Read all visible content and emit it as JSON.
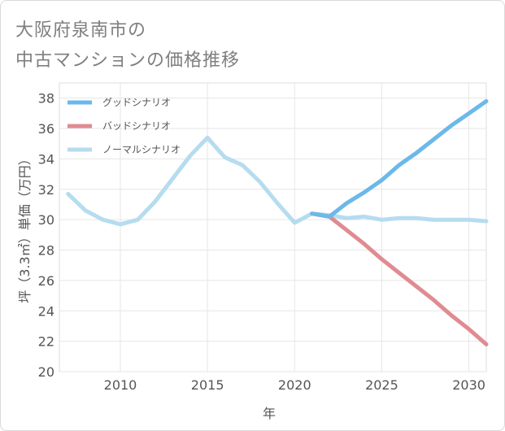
{
  "header": {
    "title_line1": "大阪府泉南市の",
    "title_line2": "中古マンションの価格推移"
  },
  "chart_data": {
    "type": "line",
    "title": "大阪府泉南市の中古マンションの価格推移",
    "xlabel": "年",
    "ylabel": "坪（3.3㎡）単価（万円）",
    "xlim": [
      2006.5,
      2031
    ],
    "ylim": [
      20,
      39
    ],
    "x_ticks": [
      2010,
      2015,
      2020,
      2025,
      2030
    ],
    "y_ticks": [
      20,
      22,
      24,
      26,
      28,
      30,
      32,
      34,
      36,
      38
    ],
    "grid": true,
    "legend_position": "top-left",
    "series": [
      {
        "name": "グッドシナリオ",
        "color": "#6cb8ea",
        "points": [
          [
            2021,
            30.4
          ],
          [
            2022,
            30.2
          ],
          [
            2023,
            31.1
          ],
          [
            2024,
            31.8
          ],
          [
            2025,
            32.6
          ],
          [
            2026,
            33.6
          ],
          [
            2027,
            34.4
          ],
          [
            2028,
            35.3
          ],
          [
            2029,
            36.2
          ],
          [
            2030,
            37.0
          ],
          [
            2031,
            37.8
          ]
        ]
      },
      {
        "name": "バッドシナリオ",
        "color": "#e08b93",
        "points": [
          [
            2021,
            30.4
          ],
          [
            2022,
            30.2
          ],
          [
            2023,
            29.3
          ],
          [
            2024,
            28.4
          ],
          [
            2025,
            27.4
          ],
          [
            2026,
            26.5
          ],
          [
            2027,
            25.6
          ],
          [
            2028,
            24.7
          ],
          [
            2029,
            23.7
          ],
          [
            2030,
            22.8
          ],
          [
            2031,
            21.8
          ]
        ]
      },
      {
        "name": "ノーマルシナリオ",
        "color": "#b5dcef",
        "points": [
          [
            2007,
            31.7
          ],
          [
            2008,
            30.6
          ],
          [
            2009,
            30.0
          ],
          [
            2010,
            29.7
          ],
          [
            2011,
            30.0
          ],
          [
            2012,
            31.2
          ],
          [
            2013,
            32.7
          ],
          [
            2014,
            34.2
          ],
          [
            2015,
            35.4
          ],
          [
            2016,
            34.1
          ],
          [
            2017,
            33.6
          ],
          [
            2018,
            32.5
          ],
          [
            2019,
            31.1
          ],
          [
            2020,
            29.8
          ],
          [
            2021,
            30.4
          ],
          [
            2022,
            30.3
          ],
          [
            2023,
            30.1
          ],
          [
            2024,
            30.2
          ],
          [
            2025,
            30.0
          ],
          [
            2026,
            30.1
          ],
          [
            2027,
            30.1
          ],
          [
            2028,
            30.0
          ],
          [
            2029,
            30.0
          ],
          [
            2030,
            30.0
          ],
          [
            2031,
            29.9
          ]
        ]
      }
    ]
  }
}
